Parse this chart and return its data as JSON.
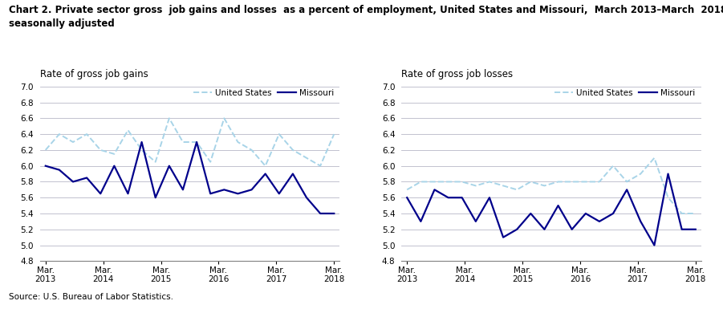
{
  "title": "Chart 2. Private sector gross  job gains and losses  as a percent of employment, United States and Missouri,  March 2013–March  2018,\nseasonally adjusted",
  "title_fontsize": 8.5,
  "left_subtitle": "Rate of gross job gains",
  "right_subtitle": "Rate of gross job losses",
  "subtitle_fontsize": 8.5,
  "source": "Source: U.S. Bureau of Labor Statistics.",
  "x_labels": [
    "Mar.\n2013",
    "Mar.\n2014",
    "Mar.\n2015",
    "Mar.\n2016",
    "Mar.\n2017",
    "Mar.\n2018"
  ],
  "x_tick_positions": [
    0,
    2,
    4,
    6,
    8,
    10
  ],
  "ylim": [
    4.8,
    7.0
  ],
  "yticks": [
    4.8,
    5.0,
    5.2,
    5.4,
    5.6,
    5.8,
    6.0,
    6.2,
    6.4,
    6.6,
    6.8,
    7.0
  ],
  "gains_us": [
    6.2,
    6.4,
    6.3,
    6.4,
    6.2,
    6.15,
    6.45,
    6.2,
    6.05,
    6.6,
    6.3,
    6.3,
    6.05,
    6.6,
    6.3,
    6.2,
    6.0,
    6.4,
    6.2,
    6.1,
    6.0,
    6.4
  ],
  "gains_mo": [
    6.0,
    5.95,
    5.8,
    5.85,
    5.65,
    6.0,
    5.65,
    6.3,
    5.6,
    6.0,
    5.7,
    6.3,
    5.65,
    5.7,
    5.65,
    5.7,
    5.9,
    5.65,
    5.9,
    5.6,
    5.4,
    5.4
  ],
  "losses_us": [
    5.7,
    5.8,
    5.8,
    5.8,
    5.8,
    5.75,
    5.8,
    5.75,
    5.7,
    5.8,
    5.75,
    5.8,
    5.8,
    5.8,
    5.8,
    6.0,
    5.8,
    5.9,
    6.1,
    5.6,
    5.4,
    5.4
  ],
  "losses_mo": [
    5.6,
    5.3,
    5.7,
    5.6,
    5.6,
    5.3,
    5.6,
    5.1,
    5.2,
    5.4,
    5.2,
    5.5,
    5.2,
    5.4,
    5.3,
    5.4,
    5.7,
    5.3,
    5.0,
    5.9,
    5.2,
    5.2
  ],
  "us_color": "#a8d4e8",
  "mo_color": "#00008B",
  "linewidth_us": 1.4,
  "linewidth_mo": 1.6,
  "n_points": 22,
  "background_color": "#ffffff",
  "grid_color": "#b8b8c8"
}
